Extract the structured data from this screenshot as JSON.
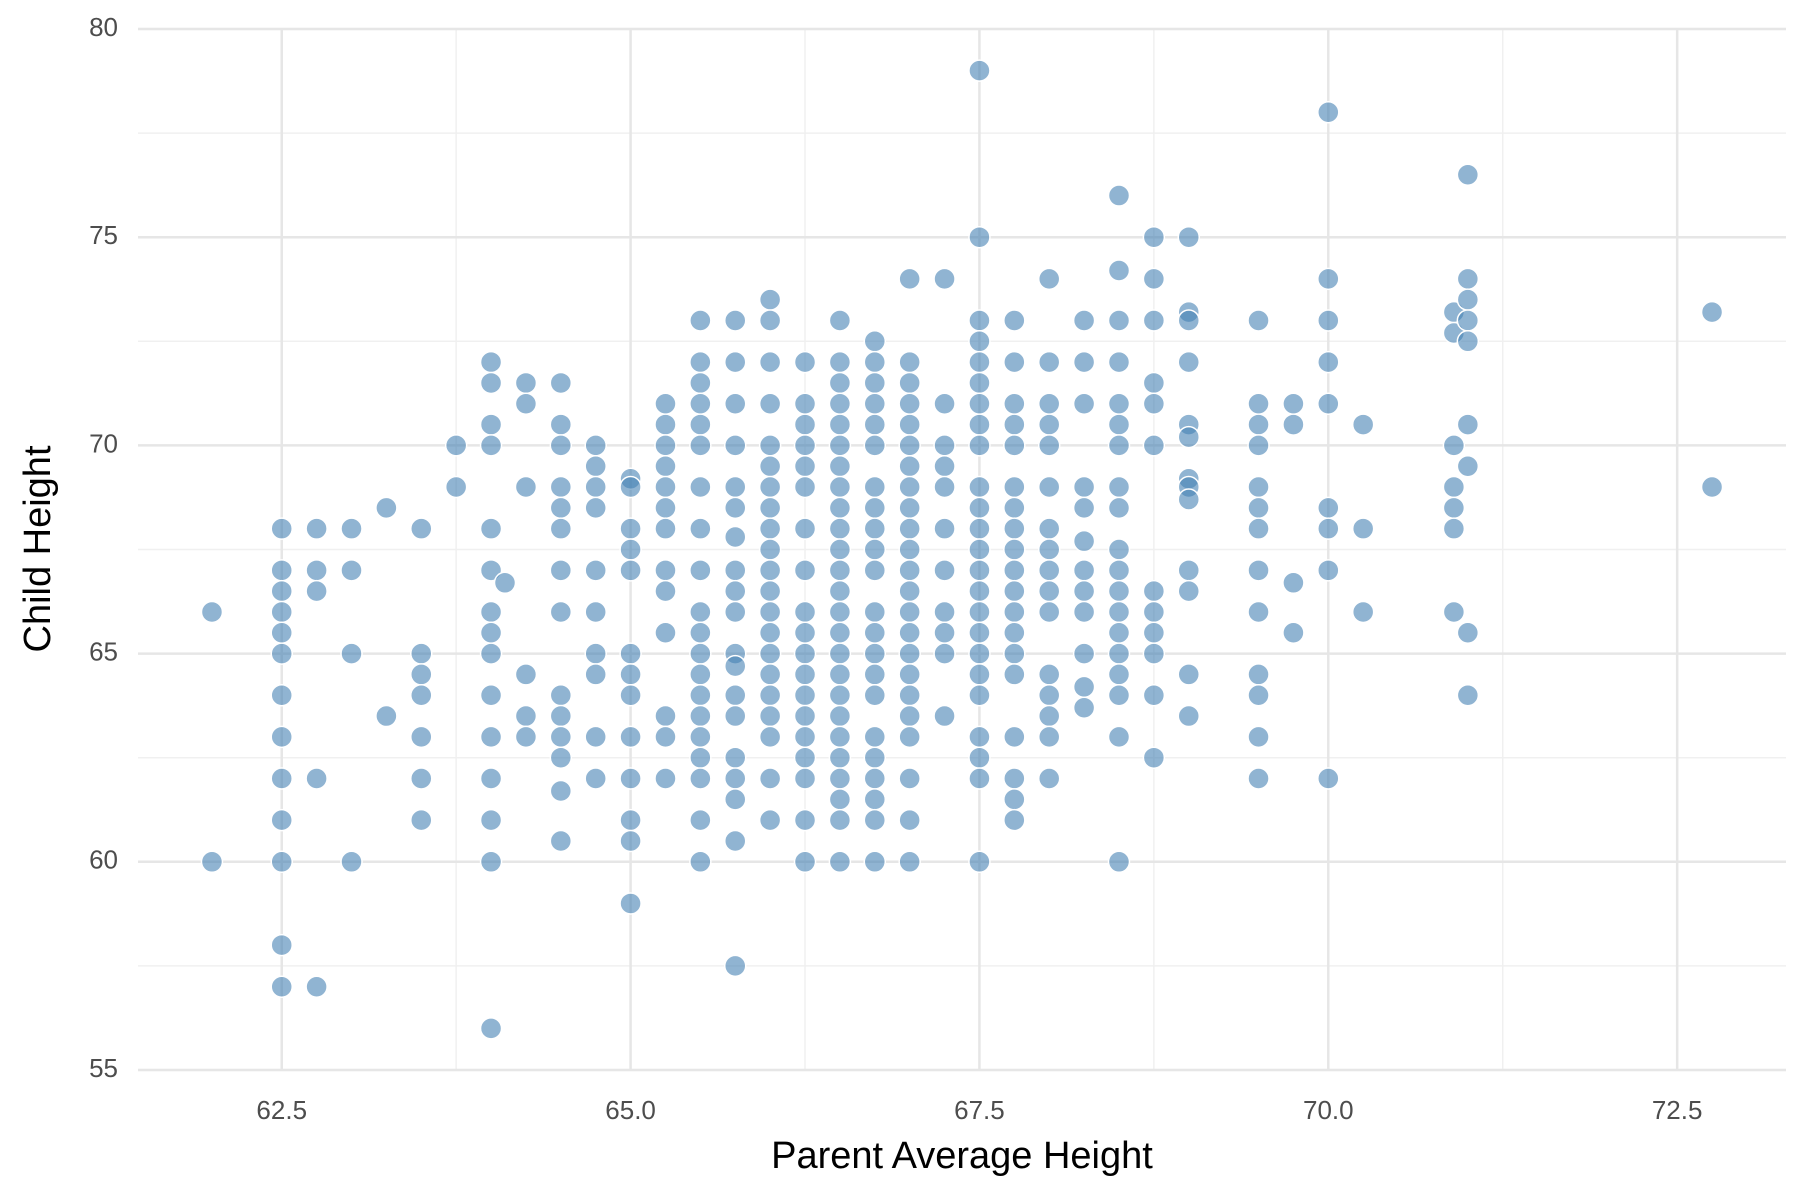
{
  "chart_data": {
    "type": "scatter",
    "x_label": "Parent Average Height",
    "y_label": "Child Height",
    "color": "#4682b4",
    "grid": true,
    "xlim": [
      61.47,
      73.28
    ],
    "ylim": [
      55,
      80
    ],
    "xticks": [
      62.5,
      {
        "value": 65,
        "label": "65.0"
      },
      67.5,
      {
        "value": 70,
        "label": "70.0"
      },
      72.5
    ],
    "yticks": [
      55,
      60,
      65,
      70,
      75,
      80
    ],
    "x_minor_ticks": [
      63.75,
      66.25,
      68.75,
      71.25
    ],
    "y_minor_ticks": [
      57.5,
      62.5,
      67.5,
      72.5,
      77.5
    ],
    "x": [
      62,
      62,
      62.5,
      62.5,
      62.5,
      62.5,
      62.5,
      62.5,
      62.5,
      62.5,
      62.5,
      62.5,
      62.5,
      62.5,
      62.5,
      62.75,
      62.75,
      62.75,
      62.75,
      62.75,
      63,
      63,
      63,
      63,
      63.25,
      63.25,
      63.5,
      63.5,
      63.5,
      63.5,
      63.5,
      63.5,
      63.5,
      63.75,
      63.75,
      64,
      64,
      64,
      64,
      64,
      64,
      64,
      64,
      64,
      64,
      64,
      64,
      64,
      64,
      64,
      64.1,
      64.25,
      64.25,
      64.25,
      64.25,
      64.25,
      64.25,
      64.5,
      64.5,
      64.5,
      64.5,
      64.5,
      64.5,
      64.5,
      64.5,
      64.5,
      64.5,
      64.5,
      64.5,
      64.5,
      64.5,
      64.75,
      64.75,
      64.75,
      64.75,
      64.75,
      64.75,
      64.75,
      64.75,
      64.75,
      64.75,
      65,
      65,
      65,
      65,
      65,
      65,
      65,
      65,
      65,
      65,
      65,
      65,
      65,
      65.25,
      65.25,
      65.25,
      65.25,
      65.25,
      65.25,
      65.25,
      65.25,
      65.25,
      65.25,
      65.25,
      65.25,
      65.25,
      65.5,
      65.5,
      65.5,
      65.5,
      65.5,
      65.5,
      65.5,
      65.5,
      65.5,
      65.5,
      65.5,
      65.5,
      65.5,
      65.5,
      65.5,
      65.5,
      65.5,
      65.5,
      65.5,
      65.5,
      65.75,
      65.75,
      65.75,
      65.75,
      65.75,
      65.75,
      65.75,
      65.75,
      65.75,
      65.75,
      65.75,
      65.75,
      65.75,
      65.75,
      65.75,
      65.75,
      65.75,
      65.75,
      65.75,
      66,
      66,
      66,
      66,
      66,
      66,
      66,
      66,
      66,
      66,
      66,
      66,
      66,
      66,
      66,
      66,
      66,
      66,
      66,
      66,
      66,
      66.25,
      66.25,
      66.25,
      66.25,
      66.25,
      66.25,
      66.25,
      66.25,
      66.25,
      66.25,
      66.25,
      66.25,
      66.25,
      66.25,
      66.25,
      66.25,
      66.25,
      66.25,
      66.25,
      66.5,
      66.5,
      66.5,
      66.5,
      66.5,
      66.5,
      66.5,
      66.5,
      66.5,
      66.5,
      66.5,
      66.5,
      66.5,
      66.5,
      66.5,
      66.5,
      66.5,
      66.5,
      66.5,
      66.5,
      66.5,
      66.5,
      66.5,
      66.5,
      66.5,
      66.75,
      66.75,
      66.75,
      66.75,
      66.75,
      66.75,
      66.75,
      66.75,
      66.75,
      66.75,
      66.75,
      66.75,
      66.75,
      66.75,
      66.75,
      66.75,
      66.75,
      66.75,
      66.75,
      66.75,
      66.75,
      66.75,
      67,
      67,
      67,
      67,
      67,
      67,
      67,
      67,
      67,
      67,
      67,
      67,
      67,
      67,
      67,
      67,
      67,
      67,
      67,
      67,
      67,
      67,
      67,
      67.25,
      67.25,
      67.25,
      67.25,
      67.25,
      67.25,
      67.25,
      67.25,
      67.25,
      67.25,
      67.25,
      67.5,
      67.5,
      67.5,
      67.5,
      67.5,
      67.5,
      67.5,
      67.5,
      67.5,
      67.5,
      67.5,
      67.5,
      67.5,
      67.5,
      67.5,
      67.5,
      67.5,
      67.5,
      67.5,
      67.5,
      67.5,
      67.5,
      67.5,
      67.5,
      67.75,
      67.75,
      67.75,
      67.75,
      67.75,
      67.75,
      67.75,
      67.75,
      67.75,
      67.75,
      67.75,
      67.75,
      67.75,
      67.75,
      67.75,
      67.75,
      67.75,
      67.75,
      67.75,
      68,
      68,
      68,
      68,
      68,
      68,
      68,
      68,
      68,
      68,
      68,
      68,
      68,
      68,
      68,
      68,
      68.25,
      68.25,
      68.25,
      68.25,
      68.25,
      68.25,
      68.25,
      68.25,
      68.25,
      68.25,
      68.25,
      68.25,
      68.5,
      68.5,
      68.5,
      68.5,
      68.5,
      68.5,
      68.5,
      68.5,
      68.5,
      68.5,
      68.5,
      68.5,
      68.5,
      68.5,
      68.5,
      68.5,
      68.5,
      68.5,
      68.5,
      68.75,
      68.75,
      68.75,
      68.75,
      68.75,
      68.75,
      68.75,
      68.75,
      68.75,
      68.75,
      68.75,
      68.75,
      69,
      69,
      69,
      69,
      69,
      69,
      69,
      69,
      69,
      69,
      69,
      69,
      69,
      69.5,
      69.5,
      69.5,
      69.5,
      69.5,
      69.5,
      69.5,
      69.5,
      69.5,
      69.5,
      69.5,
      69.5,
      69.5,
      69.75,
      69.75,
      69.75,
      69.75,
      70,
      70,
      70,
      70,
      70,
      70,
      70,
      70,
      70,
      70.25,
      70.25,
      70.25,
      70.9,
      70.9,
      70.9,
      70.9,
      70.9,
      70.9,
      70.9,
      71,
      71,
      71,
      71,
      71,
      71,
      71,
      71,
      71,
      72.75,
      72.75
    ],
    "values": [
      66,
      60,
      68,
      67,
      66.5,
      66,
      65.5,
      65,
      64,
      63,
      62,
      61,
      60,
      58,
      57,
      68,
      67,
      66.5,
      62,
      57,
      68,
      67,
      65,
      60,
      68.5,
      63.5,
      68,
      65,
      64.5,
      64,
      63,
      62,
      61,
      70,
      69,
      72,
      71.5,
      70.5,
      70,
      68,
      67,
      66,
      65.5,
      65,
      64,
      63,
      62,
      61,
      60,
      56,
      66.7,
      71.5,
      71,
      69,
      64.5,
      63.5,
      63,
      71.5,
      70.5,
      70,
      69,
      68.5,
      68,
      67,
      66,
      64,
      63.5,
      63,
      62.5,
      61.7,
      60.5,
      70,
      69.5,
      69,
      68.5,
      67,
      66,
      65,
      64.5,
      63,
      62,
      69.2,
      69,
      68,
      67.5,
      67,
      65,
      64.5,
      64,
      63,
      62,
      61,
      60.5,
      59,
      71,
      70.5,
      70,
      69.5,
      69,
      68.5,
      68,
      67,
      66.5,
      65.5,
      63.5,
      63,
      62,
      73,
      72,
      71.5,
      71,
      70.5,
      70,
      69,
      68,
      67,
      66,
      65.5,
      65,
      64.5,
      64,
      63.5,
      63,
      62.5,
      62,
      61,
      60,
      73,
      72,
      71,
      70,
      69,
      68.5,
      67.8,
      67,
      66.5,
      66,
      65,
      64.7,
      64,
      63.5,
      62.5,
      62,
      61.5,
      60.5,
      57.5,
      73.5,
      73,
      72,
      71,
      70,
      69.5,
      69,
      68.5,
      68,
      67.5,
      67,
      66.5,
      66,
      65.5,
      65,
      64.5,
      64,
      63.5,
      63,
      62,
      61,
      72,
      71,
      70.5,
      70,
      69.5,
      69,
      68,
      67,
      66,
      65.5,
      65,
      64.5,
      64,
      63.5,
      63,
      62.5,
      62,
      61,
      60,
      73,
      72,
      71.5,
      71,
      70.5,
      70,
      69.5,
      69,
      68.5,
      68,
      67.5,
      67,
      66.5,
      66,
      65.5,
      65,
      64.5,
      64,
      63.5,
      63,
      62.5,
      62,
      61.5,
      61,
      60,
      72.5,
      72,
      71.5,
      71,
      70.5,
      70,
      69,
      68.5,
      68,
      67.5,
      67,
      66,
      65.5,
      65,
      64.5,
      64,
      63,
      62.5,
      62,
      61.5,
      61,
      60,
      74,
      72,
      71.5,
      71,
      70.5,
      70,
      69.5,
      69,
      68.5,
      68,
      67.5,
      67,
      66.5,
      66,
      65.5,
      65,
      64.5,
      64,
      63.5,
      63,
      62,
      61,
      60,
      74,
      71,
      70,
      69.5,
      69,
      68,
      67,
      66,
      65.5,
      65,
      63.5,
      79,
      75,
      73,
      72.5,
      72,
      71.5,
      71,
      70.5,
      70,
      69,
      68.5,
      68,
      67.5,
      67,
      66.5,
      66,
      65.5,
      65,
      64.5,
      64,
      63,
      62.5,
      62,
      60,
      73,
      72,
      71,
      70.5,
      70,
      69,
      68.5,
      68,
      67.5,
      67,
      66.5,
      66,
      65.5,
      65,
      64.5,
      63,
      62,
      61.5,
      61,
      74,
      72,
      71,
      70.5,
      70,
      69,
      68,
      67.5,
      67,
      66.5,
      66,
      64.5,
      64,
      63.5,
      63,
      62,
      73,
      72,
      71,
      69,
      68.5,
      67.7,
      67,
      66.5,
      66,
      65,
      64.2,
      63.7,
      76,
      74.2,
      73,
      72,
      71,
      70.5,
      70,
      69,
      68.5,
      67.5,
      67,
      66.5,
      66,
      65.5,
      65,
      64.5,
      64,
      63,
      60,
      75,
      74,
      73,
      71.5,
      71,
      70,
      66.5,
      66,
      65.5,
      65,
      64,
      62.5,
      75,
      73.2,
      73,
      72,
      70.5,
      70.2,
      69.2,
      69,
      68.7,
      67,
      66.5,
      64.5,
      63.5,
      73,
      71,
      70.5,
      70,
      69,
      68.5,
      68,
      67,
      66,
      64.5,
      64,
      63,
      62,
      71,
      70.5,
      66.7,
      65.5,
      78,
      74,
      73,
      72,
      71,
      68.5,
      68,
      67,
      62,
      70.5,
      68,
      66,
      73.2,
      72.7,
      70,
      69,
      68.5,
      68,
      66,
      76.5,
      74,
      73.5,
      73,
      72.5,
      70.5,
      69.5,
      65.5,
      64,
      73.2,
      69
    ]
  }
}
